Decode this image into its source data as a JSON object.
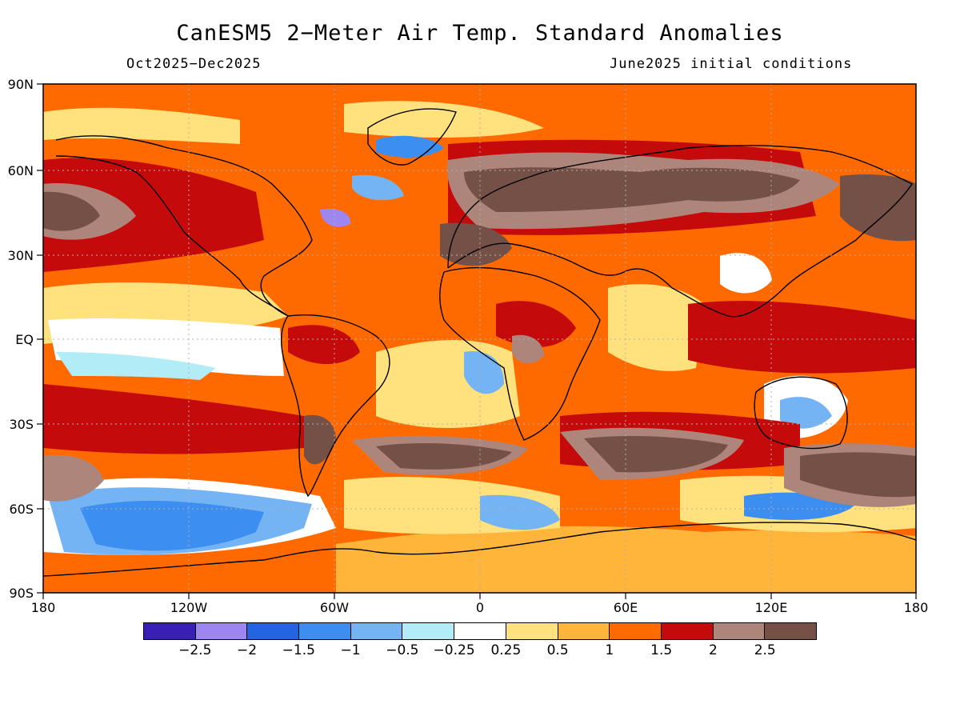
{
  "title": "CanESM5 2−Meter Air Temp. Standard Anomalies",
  "subtitle_left": "Oct2025−Dec2025",
  "subtitle_right": "June2025 initial conditions",
  "lat_labels": [
    "90N",
    "60N",
    "30N",
    "EQ",
    "30S",
    "60S",
    "90S"
  ],
  "lon_labels": [
    "180",
    "120W",
    "60W",
    "0",
    "60E",
    "120E",
    "180"
  ],
  "colorbar": {
    "colors": [
      "#3a1fb6",
      "#9e86f0",
      "#2364e2",
      "#3c8ef0",
      "#74b4f4",
      "#b2ecf6",
      "#ffffff",
      "#ffe27e",
      "#ffb43a",
      "#ff6a00",
      "#c40a0a",
      "#ad857a",
      "#745046"
    ],
    "labels": [
      "−2.5",
      "−2",
      "−1.5",
      "−1",
      "−0.5",
      "−0.25",
      "0.25",
      "0.5",
      "1",
      "1.5",
      "2",
      "2.5"
    ]
  },
  "map_regions": {
    "background": "warm anomalies dominant (orange)",
    "cold_regions": [
      "Southern Ocean south of Pacific",
      "Labrador Sea / Greenland",
      "South Atlantic off southern Africa",
      "Central/western Australia"
    ],
    "hot_regions": [
      "Eurasia",
      "Central Africa",
      "North Pacific",
      "South Indian Ocean"
    ]
  }
}
